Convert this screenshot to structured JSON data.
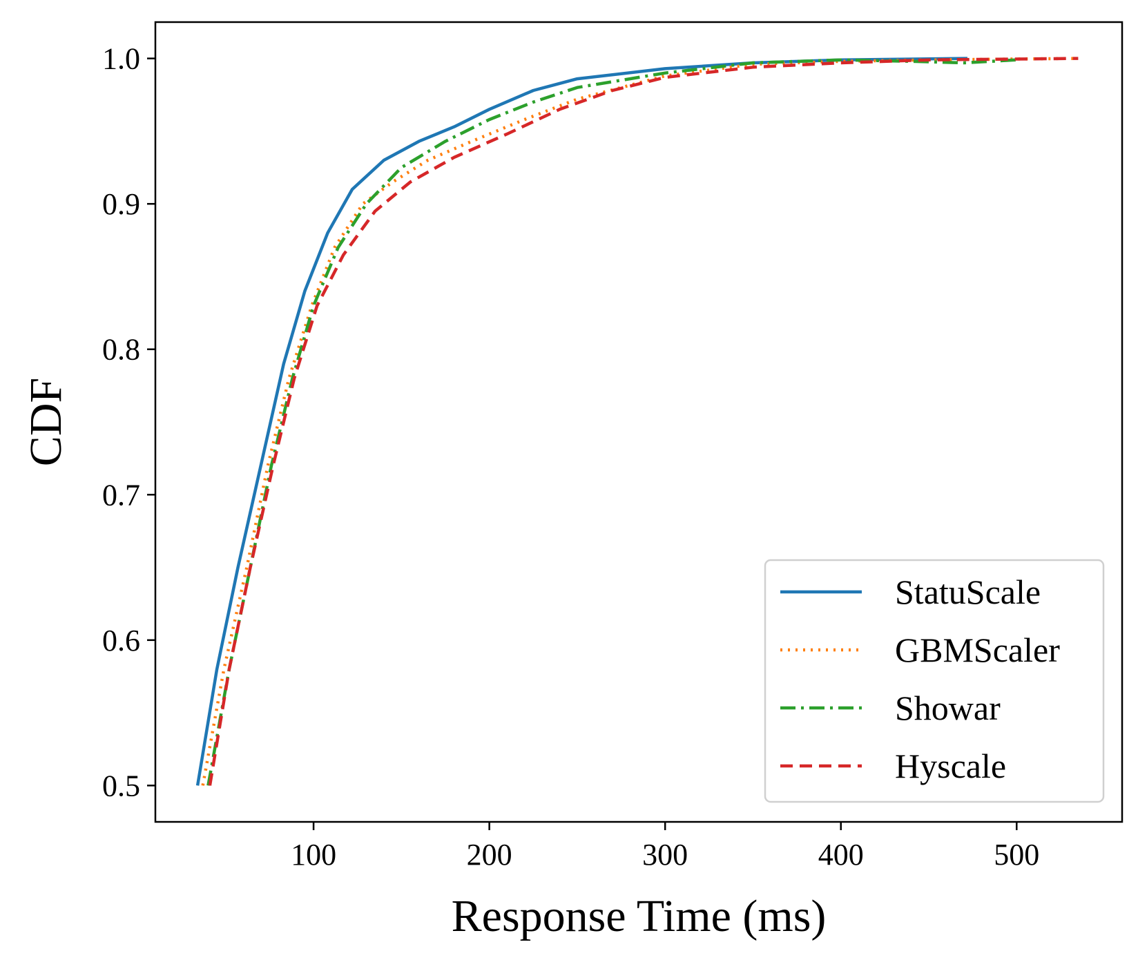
{
  "chart_data": {
    "type": "line",
    "title": "",
    "xlabel": "Response Time (ms)",
    "ylabel": "CDF",
    "xlim": [
      10,
      560
    ],
    "ylim": [
      0.475,
      1.025
    ],
    "xticks": [
      100,
      200,
      300,
      400,
      500
    ],
    "yticks": [
      0.5,
      0.6,
      0.7,
      0.8,
      0.9,
      1.0
    ],
    "xtick_labels": [
      "100",
      "200",
      "300",
      "400",
      "500"
    ],
    "ytick_labels": [
      "0.5",
      "0.6",
      "0.7",
      "0.8",
      "0.9",
      "1.0"
    ],
    "grid": false,
    "legend_position": "lower-right",
    "series": [
      {
        "name": "StatuScale",
        "color": "#1f77b4",
        "style": "solid",
        "points": [
          [
            34,
            0.5
          ],
          [
            45,
            0.58
          ],
          [
            57,
            0.65
          ],
          [
            70,
            0.72
          ],
          [
            83,
            0.79
          ],
          [
            95,
            0.84
          ],
          [
            108,
            0.88
          ],
          [
            122,
            0.91
          ],
          [
            140,
            0.93
          ],
          [
            160,
            0.943
          ],
          [
            180,
            0.953
          ],
          [
            200,
            0.965
          ],
          [
            225,
            0.978
          ],
          [
            250,
            0.986
          ],
          [
            300,
            0.993
          ],
          [
            350,
            0.997
          ],
          [
            400,
            0.999
          ],
          [
            472,
            1.0
          ]
        ]
      },
      {
        "name": "GBMScaler",
        "color": "#ff7f0e",
        "style": "dotted",
        "points": [
          [
            37,
            0.5
          ],
          [
            49,
            0.58
          ],
          [
            62,
            0.65
          ],
          [
            74,
            0.72
          ],
          [
            86,
            0.78
          ],
          [
            99,
            0.83
          ],
          [
            112,
            0.87
          ],
          [
            128,
            0.9
          ],
          [
            145,
            0.915
          ],
          [
            165,
            0.93
          ],
          [
            190,
            0.943
          ],
          [
            220,
            0.958
          ],
          [
            250,
            0.972
          ],
          [
            300,
            0.988
          ],
          [
            350,
            0.996
          ],
          [
            400,
            0.998
          ],
          [
            450,
            0.999
          ],
          [
            535,
            1.0
          ]
        ]
      },
      {
        "name": "Showar",
        "color": "#2ca02c",
        "style": "dashdot",
        "points": [
          [
            40,
            0.5
          ],
          [
            52,
            0.58
          ],
          [
            64,
            0.65
          ],
          [
            76,
            0.72
          ],
          [
            88,
            0.78
          ],
          [
            100,
            0.83
          ],
          [
            114,
            0.87
          ],
          [
            130,
            0.9
          ],
          [
            150,
            0.925
          ],
          [
            175,
            0.943
          ],
          [
            200,
            0.958
          ],
          [
            225,
            0.97
          ],
          [
            250,
            0.98
          ],
          [
            300,
            0.99
          ],
          [
            350,
            0.997
          ],
          [
            400,
            0.999
          ],
          [
            440,
            0.998
          ],
          [
            470,
            0.997
          ],
          [
            500,
            0.999
          ]
        ]
      },
      {
        "name": "Hyscale",
        "color": "#d62728",
        "style": "dashed",
        "points": [
          [
            41,
            0.5
          ],
          [
            52,
            0.58
          ],
          [
            64,
            0.65
          ],
          [
            77,
            0.72
          ],
          [
            89,
            0.78
          ],
          [
            102,
            0.83
          ],
          [
            117,
            0.865
          ],
          [
            135,
            0.895
          ],
          [
            155,
            0.915
          ],
          [
            180,
            0.932
          ],
          [
            210,
            0.948
          ],
          [
            240,
            0.965
          ],
          [
            270,
            0.978
          ],
          [
            300,
            0.987
          ],
          [
            350,
            0.994
          ],
          [
            400,
            0.997
          ],
          [
            450,
            0.999
          ],
          [
            535,
            1.0
          ]
        ]
      }
    ]
  }
}
